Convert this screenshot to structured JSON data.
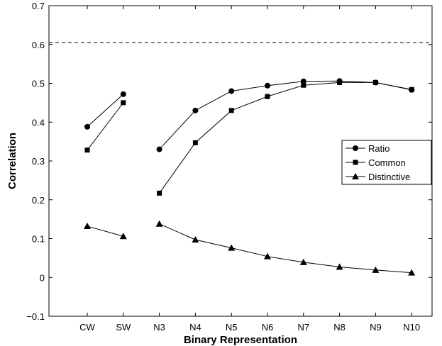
{
  "chart_data": {
    "type": "line",
    "xlabel": "Binary Representation",
    "ylabel": "Correlation",
    "categories": [
      "CW",
      "SW",
      "N3",
      "N4",
      "N5",
      "N6",
      "N7",
      "N8",
      "N9",
      "N10"
    ],
    "ylim": [
      -0.1,
      0.7
    ],
    "yticks": [
      "−0.1",
      "0",
      "0.1",
      "0.2",
      "0.3",
      "0.4",
      "0.5",
      "0.6",
      "0.7"
    ],
    "reference_line": {
      "y": 0.605,
      "style": "dashed"
    },
    "legend_position": "right",
    "series": [
      {
        "name": "Ratio",
        "marker": "circle",
        "values": [
          0.388,
          0.472,
          0.33,
          0.43,
          0.48,
          0.494,
          0.505,
          0.506,
          0.502,
          0.483
        ]
      },
      {
        "name": "Common",
        "marker": "square",
        "values": [
          0.328,
          0.45,
          0.217,
          0.347,
          0.43,
          0.466,
          0.495,
          0.502,
          0.502,
          0.484
        ]
      },
      {
        "name": "Distinctive",
        "marker": "triangle",
        "values": [
          0.132,
          0.106,
          0.138,
          0.097,
          0.076,
          0.054,
          0.039,
          0.027,
          0.019,
          0.012
        ]
      }
    ],
    "segments": [
      [
        0,
        1
      ],
      [
        2,
        9
      ]
    ],
    "grid": false
  }
}
